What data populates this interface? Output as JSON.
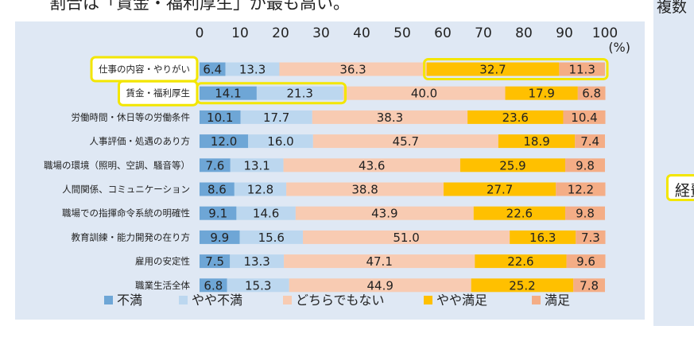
{
  "caption": "割合は「賃金・福利厚生」が最も高い。",
  "right_panel": {
    "top_text": "複数",
    "highlight_text": "経費"
  },
  "chart_data": {
    "type": "bar",
    "orientation": "horizontal",
    "stacked": true,
    "xlim": [
      0,
      100
    ],
    "xticks": [
      "0",
      "10",
      "20",
      "30",
      "40",
      "50",
      "60",
      "70",
      "80",
      "90",
      "100"
    ],
    "unit_label": "(%)",
    "categories": [
      "仕事の内容・やりがい",
      "賃金・福利厚生",
      "労働時間・休日等の労働条件",
      "人事評価・処遇のあり方",
      "職場の環境（照明、空調、騒音等）",
      "人間関係、コミュニケーション",
      "職場での指揮命令系統の明確性",
      "教育訓練・能力開発の在り方",
      "雇用の安定性",
      "職業生活全体"
    ],
    "series": [
      {
        "name": "不満",
        "color": "#6ea6d6",
        "values": [
          6.4,
          14.1,
          10.1,
          12.0,
          7.6,
          8.6,
          9.1,
          9.9,
          7.5,
          6.8
        ]
      },
      {
        "name": "やや不満",
        "color": "#bcd7ef",
        "values": [
          13.3,
          21.3,
          17.7,
          16.0,
          13.1,
          12.8,
          14.6,
          15.6,
          13.3,
          15.3
        ]
      },
      {
        "name": "どちらでもない",
        "color": "#f8cbb2",
        "values": [
          36.3,
          40.0,
          38.3,
          45.7,
          43.6,
          38.8,
          43.9,
          51.0,
          47.1,
          44.9
        ]
      },
      {
        "name": "やや満足",
        "color": "#ffc000",
        "values": [
          32.7,
          17.9,
          23.6,
          18.9,
          25.9,
          27.7,
          22.6,
          16.3,
          22.6,
          25.2
        ]
      },
      {
        "name": "満足",
        "color": "#f4ad86",
        "values": [
          11.3,
          6.8,
          10.4,
          7.4,
          9.8,
          12.2,
          9.8,
          7.3,
          9.6,
          7.8
        ]
      }
    ],
    "highlight_color": "#f3e600",
    "highlighted_categories": [
      0,
      1
    ],
    "highlighted_segments": [
      {
        "category": 0,
        "series": [
          3,
          4
        ]
      },
      {
        "category": 1,
        "series": [
          0,
          1
        ]
      }
    ]
  }
}
